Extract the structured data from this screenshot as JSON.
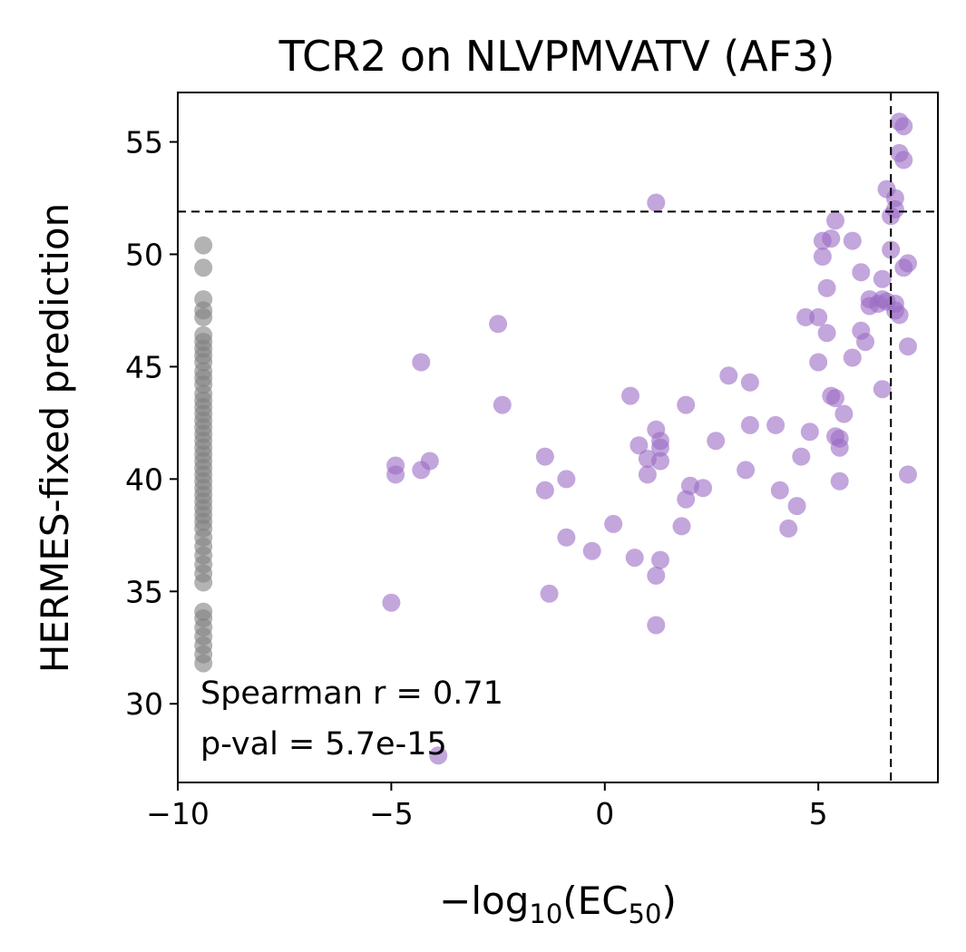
{
  "chart_data": {
    "type": "scatter",
    "title": "TCR2 on NLVPMVATV (AF3)",
    "xlabel": {
      "prefix": "−log",
      "sub1": "10",
      "mid": "(EC",
      "sub2": "50",
      "suffix": ")"
    },
    "ylabel": "HERMES-fixed prediction",
    "xlim": [
      -10,
      7.8
    ],
    "ylim": [
      26.5,
      57.2
    ],
    "xticks": [
      {
        "value": -10,
        "label": "−10"
      },
      {
        "value": -5,
        "label": "−5"
      },
      {
        "value": 0,
        "label": "0"
      },
      {
        "value": 5,
        "label": "5"
      }
    ],
    "yticks": [
      {
        "value": 30,
        "label": "30"
      },
      {
        "value": 35,
        "label": "35"
      },
      {
        "value": 40,
        "label": "40"
      },
      {
        "value": 45,
        "label": "45"
      },
      {
        "value": 50,
        "label": "50"
      },
      {
        "value": 55,
        "label": "55"
      }
    ],
    "reference_lines": {
      "horizontal_y": 51.9,
      "vertical_x": 6.7
    },
    "annotation": {
      "line1": "Spearman r = 0.71",
      "line2": "p-val = 5.7e-15"
    },
    "colors": {
      "gray": "#808080",
      "purple": "#9b6bc4"
    },
    "series": [
      {
        "color_key": "gray",
        "points": [
          [
            -9.4,
            50.4
          ],
          [
            -9.4,
            49.4
          ],
          [
            -9.4,
            48.0
          ],
          [
            -9.4,
            47.5
          ],
          [
            -9.4,
            47.2
          ],
          [
            -9.4,
            46.4
          ],
          [
            -9.4,
            46.1
          ],
          [
            -9.4,
            45.8
          ],
          [
            -9.4,
            45.5
          ],
          [
            -9.4,
            45.2
          ],
          [
            -9.4,
            44.8
          ],
          [
            -9.4,
            44.5
          ],
          [
            -9.4,
            44.2
          ],
          [
            -9.4,
            43.8
          ],
          [
            -9.4,
            43.5
          ],
          [
            -9.4,
            43.2
          ],
          [
            -9.4,
            42.9
          ],
          [
            -9.4,
            42.6
          ],
          [
            -9.4,
            42.3
          ],
          [
            -9.4,
            42.0
          ],
          [
            -9.4,
            41.7
          ],
          [
            -9.4,
            41.4
          ],
          [
            -9.4,
            41.1
          ],
          [
            -9.4,
            40.8
          ],
          [
            -9.4,
            40.5
          ],
          [
            -9.4,
            40.2
          ],
          [
            -9.4,
            39.9
          ],
          [
            -9.4,
            39.6
          ],
          [
            -9.4,
            39.3
          ],
          [
            -9.4,
            39.0
          ],
          [
            -9.4,
            38.7
          ],
          [
            -9.4,
            38.4
          ],
          [
            -9.4,
            38.1
          ],
          [
            -9.4,
            37.8
          ],
          [
            -9.4,
            37.4
          ],
          [
            -9.4,
            37.0
          ],
          [
            -9.4,
            36.6
          ],
          [
            -9.4,
            36.2
          ],
          [
            -9.4,
            35.8
          ],
          [
            -9.4,
            35.4
          ],
          [
            -9.4,
            34.1
          ],
          [
            -9.4,
            33.8
          ],
          [
            -9.4,
            33.4
          ],
          [
            -9.4,
            33.0
          ],
          [
            -9.4,
            32.6
          ],
          [
            -9.4,
            32.2
          ],
          [
            -9.4,
            31.8
          ]
        ]
      },
      {
        "color_key": "purple",
        "points": [
          [
            -5.0,
            34.5
          ],
          [
            -4.9,
            40.6
          ],
          [
            -4.9,
            40.2
          ],
          [
            -4.3,
            45.2
          ],
          [
            -4.3,
            40.4
          ],
          [
            -4.1,
            40.8
          ],
          [
            -3.9,
            27.7
          ],
          [
            -2.5,
            46.9
          ],
          [
            -2.4,
            43.3
          ],
          [
            -1.4,
            41.0
          ],
          [
            -1.4,
            39.5
          ],
          [
            -1.3,
            34.9
          ],
          [
            -0.9,
            40.0
          ],
          [
            -0.9,
            37.4
          ],
          [
            -0.3,
            36.8
          ],
          [
            0.2,
            38.0
          ],
          [
            0.6,
            43.7
          ],
          [
            0.7,
            36.5
          ],
          [
            0.8,
            41.5
          ],
          [
            1.0,
            40.9
          ],
          [
            1.0,
            40.2
          ],
          [
            1.2,
            35.7
          ],
          [
            1.2,
            33.5
          ],
          [
            1.2,
            42.2
          ],
          [
            1.2,
            52.3
          ],
          [
            1.3,
            41.7
          ],
          [
            1.3,
            41.4
          ],
          [
            1.3,
            40.8
          ],
          [
            1.3,
            36.4
          ],
          [
            1.8,
            37.9
          ],
          [
            1.9,
            43.3
          ],
          [
            1.9,
            39.1
          ],
          [
            2.0,
            39.7
          ],
          [
            2.3,
            39.6
          ],
          [
            2.6,
            41.7
          ],
          [
            2.9,
            44.6
          ],
          [
            3.3,
            40.4
          ],
          [
            3.4,
            44.3
          ],
          [
            3.4,
            42.4
          ],
          [
            4.0,
            42.4
          ],
          [
            4.1,
            39.5
          ],
          [
            4.3,
            37.8
          ],
          [
            4.5,
            38.8
          ],
          [
            4.6,
            41.0
          ],
          [
            4.7,
            47.2
          ],
          [
            4.8,
            42.1
          ],
          [
            5.0,
            47.2
          ],
          [
            5.0,
            45.2
          ],
          [
            5.1,
            49.9
          ],
          [
            5.1,
            50.6
          ],
          [
            5.2,
            48.5
          ],
          [
            5.2,
            46.5
          ],
          [
            5.3,
            50.7
          ],
          [
            5.3,
            43.7
          ],
          [
            5.4,
            43.6
          ],
          [
            5.4,
            51.5
          ],
          [
            5.4,
            41.9
          ],
          [
            5.5,
            41.8
          ],
          [
            5.5,
            41.4
          ],
          [
            5.5,
            39.9
          ],
          [
            5.6,
            42.9
          ],
          [
            5.8,
            45.4
          ],
          [
            5.8,
            50.6
          ],
          [
            6.0,
            49.2
          ],
          [
            6.0,
            46.6
          ],
          [
            6.1,
            46.1
          ],
          [
            6.2,
            47.7
          ],
          [
            6.2,
            48.0
          ],
          [
            6.4,
            47.8
          ],
          [
            6.5,
            48.0
          ],
          [
            6.5,
            48.9
          ],
          [
            6.5,
            44.0
          ],
          [
            6.6,
            47.9
          ],
          [
            6.6,
            52.9
          ],
          [
            6.7,
            50.2
          ],
          [
            6.7,
            51.7
          ],
          [
            6.8,
            52.5
          ],
          [
            6.8,
            52.0
          ],
          [
            6.8,
            47.8
          ],
          [
            6.8,
            47.5
          ],
          [
            6.9,
            55.9
          ],
          [
            6.9,
            54.5
          ],
          [
            6.9,
            47.3
          ],
          [
            7.0,
            55.7
          ],
          [
            7.0,
            54.2
          ],
          [
            7.0,
            49.4
          ],
          [
            7.1,
            49.6
          ],
          [
            7.1,
            45.9
          ],
          [
            7.1,
            40.2
          ]
        ]
      }
    ]
  }
}
